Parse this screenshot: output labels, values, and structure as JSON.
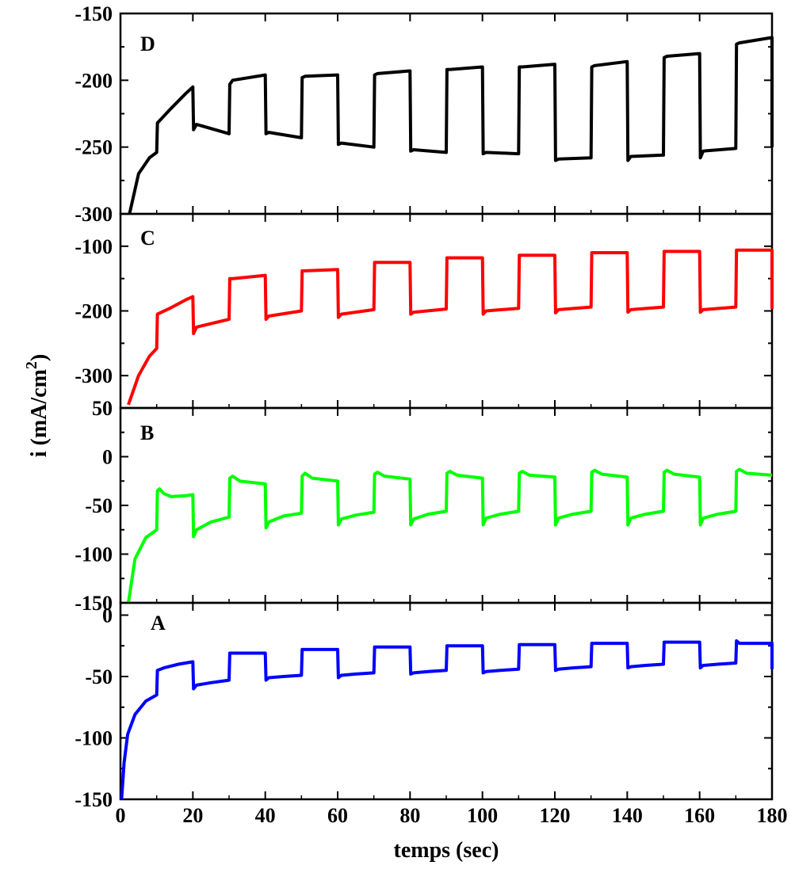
{
  "chart_data": {
    "type": "line",
    "xlabel": "temps (sec)",
    "ylabel": "i (mA/cm",
    "ylabel_sup": "2",
    "ylabel_close": ")",
    "xlim": [
      0,
      180
    ],
    "xticks": [
      0,
      20,
      40,
      60,
      80,
      100,
      120,
      140,
      160,
      180
    ],
    "xtick_labels": [
      "0",
      "20",
      "40",
      "60",
      "80",
      "100",
      "120",
      "140",
      "160",
      "180"
    ],
    "grid": false,
    "panels": [
      {
        "label": "D",
        "color": "#000000",
        "ylim": [
          -300,
          -150
        ],
        "yticks": [
          -150,
          -200,
          -250,
          -300
        ],
        "ytick_labels": [
          "-150",
          "-200",
          "-250",
          "-300"
        ],
        "y_inverted": true,
        "start": -305,
        "series": [
          {
            "x": [
              2.5,
              5,
              8,
              10
            ],
            "y": [
              -300,
              -270,
              -258,
              -254
            ]
          },
          {
            "x": [
              10.2,
              14,
              18,
              20
            ],
            "y": [
              -232,
              -221,
              -210,
              -205
            ]
          },
          {
            "x": [
              20.2,
              21,
              30
            ],
            "y": [
              -237,
              -233,
              -240
            ]
          },
          {
            "x": [
              30.2,
              31,
              40
            ],
            "y": [
              -203,
              -200,
              -196
            ]
          },
          {
            "x": [
              40.2,
              41,
              50
            ],
            "y": [
              -240,
              -239,
              -243
            ]
          },
          {
            "x": [
              50.2,
              51,
              60
            ],
            "y": [
              -198,
              -197,
              -196
            ]
          },
          {
            "x": [
              60.2,
              61,
              70
            ],
            "y": [
              -248,
              -247,
              -250
            ]
          },
          {
            "x": [
              70.2,
              71,
              80
            ],
            "y": [
              -196,
              -195,
              -193
            ]
          },
          {
            "x": [
              80.2,
              81,
              90
            ],
            "y": [
              -253,
              -252,
              -254
            ]
          },
          {
            "x": [
              90.2,
              91,
              100
            ],
            "y": [
              -192,
              -192,
              -190
            ]
          },
          {
            "x": [
              100.2,
              101,
              110
            ],
            "y": [
              -255,
              -254,
              -255
            ]
          },
          {
            "x": [
              110.2,
              111,
              120
            ],
            "y": [
              -190,
              -190,
              -188
            ]
          },
          {
            "x": [
              120.2,
              121,
              130
            ],
            "y": [
              -260,
              -259,
              -258
            ]
          },
          {
            "x": [
              130.2,
              131,
              140
            ],
            "y": [
              -190,
              -189,
              -186
            ]
          },
          {
            "x": [
              140.2,
              141,
              150
            ],
            "y": [
              -260,
              -257,
              -256
            ]
          },
          {
            "x": [
              150.2,
              151,
              160
            ],
            "y": [
              -183,
              -182,
              -180
            ]
          },
          {
            "x": [
              160.2,
              161,
              170
            ],
            "y": [
              -258,
              -253,
              -251
            ]
          },
          {
            "x": [
              170.2,
              171,
              180
            ],
            "y": [
              -173,
              -172,
              -168
            ]
          }
        ],
        "end": -250
      },
      {
        "label": "C",
        "color": "#ff0000",
        "ylim": [
          -350,
          -50
        ],
        "yticks": [
          -100,
          -200,
          -300
        ],
        "ytick_labels": [
          "-100",
          "-200",
          "-300"
        ],
        "y_inverted": true,
        "start": -360,
        "series": [
          {
            "x": [
              2.2,
              5,
              8,
              10
            ],
            "y": [
              -345,
              -300,
              -270,
              -258
            ]
          },
          {
            "x": [
              10.2,
              14,
              18,
              20
            ],
            "y": [
              -205,
              -195,
              -183,
              -178
            ]
          },
          {
            "x": [
              20.2,
              21,
              30
            ],
            "y": [
              -235,
              -225,
              -213
            ]
          },
          {
            "x": [
              30.2,
              31,
              40
            ],
            "y": [
              -150,
              -150,
              -145
            ]
          },
          {
            "x": [
              40.2,
              41,
              50
            ],
            "y": [
              -213,
              -208,
              -200
            ]
          },
          {
            "x": [
              50.2,
              51,
              60
            ],
            "y": [
              -138,
              -138,
              -136
            ]
          },
          {
            "x": [
              60.2,
              61,
              70
            ],
            "y": [
              -210,
              -205,
              -198
            ]
          },
          {
            "x": [
              70.2,
              71,
              80
            ],
            "y": [
              -125,
              -125,
              -125
            ]
          },
          {
            "x": [
              80.2,
              81,
              90
            ],
            "y": [
              -205,
              -202,
              -197
            ]
          },
          {
            "x": [
              90.2,
              91,
              100
            ],
            "y": [
              -118,
              -118,
              -118
            ]
          },
          {
            "x": [
              100.2,
              101,
              110
            ],
            "y": [
              -205,
              -200,
              -196
            ]
          },
          {
            "x": [
              110.2,
              111,
              120
            ],
            "y": [
              -114,
              -114,
              -114
            ]
          },
          {
            "x": [
              120.2,
              121,
              130
            ],
            "y": [
              -203,
              -198,
              -194
            ]
          },
          {
            "x": [
              130.2,
              131,
              140
            ],
            "y": [
              -110,
              -110,
              -110
            ]
          },
          {
            "x": [
              140.2,
              141,
              150
            ],
            "y": [
              -202,
              -198,
              -194
            ]
          },
          {
            "x": [
              150.2,
              151,
              160
            ],
            "y": [
              -108,
              -108,
              -108
            ]
          },
          {
            "x": [
              160.2,
              161,
              170
            ],
            "y": [
              -202,
              -198,
              -194
            ]
          },
          {
            "x": [
              170.2,
              171,
              180
            ],
            "y": [
              -106,
              -106,
              -106
            ]
          }
        ],
        "end": -197
      },
      {
        "label": "B",
        "color": "#00ff00",
        "ylim": [
          -150,
          50
        ],
        "yticks": [
          50,
          0,
          -50,
          -100,
          -150
        ],
        "ytick_labels": [
          "50",
          "0",
          "-50",
          "-100",
          "-150"
        ],
        "y_inverted": false,
        "start": -155,
        "series": [
          {
            "x": [
              2.2,
              4,
              7,
              10
            ],
            "y": [
              -150,
              -105,
              -83,
              -75
            ]
          },
          {
            "x": [
              10.2,
              10.8,
              12,
              14,
              18,
              20
            ],
            "y": [
              -35,
              -33,
              -38,
              -41,
              -40,
              -39
            ]
          },
          {
            "x": [
              20.2,
              21,
              25,
              30
            ],
            "y": [
              -82,
              -75,
              -67,
              -62
            ]
          },
          {
            "x": [
              30.2,
              31,
              33,
              40
            ],
            "y": [
              -22,
              -20,
              -25,
              -28
            ]
          },
          {
            "x": [
              40.2,
              41,
              45,
              50
            ],
            "y": [
              -73,
              -67,
              -61,
              -58
            ]
          },
          {
            "x": [
              50.2,
              51,
              53,
              60
            ],
            "y": [
              -20,
              -17,
              -22,
              -25
            ]
          },
          {
            "x": [
              60.2,
              61,
              65,
              70
            ],
            "y": [
              -70,
              -64,
              -60,
              -57
            ]
          },
          {
            "x": [
              70.2,
              71,
              73,
              80
            ],
            "y": [
              -18,
              -16,
              -20,
              -23
            ]
          },
          {
            "x": [
              80.2,
              81,
              85,
              90
            ],
            "y": [
              -70,
              -64,
              -59,
              -56
            ]
          },
          {
            "x": [
              90.2,
              91,
              93,
              100
            ],
            "y": [
              -17,
              -15,
              -19,
              -22
            ]
          },
          {
            "x": [
              100.2,
              101,
              105,
              110
            ],
            "y": [
              -70,
              -63,
              -59,
              -56
            ]
          },
          {
            "x": [
              110.2,
              111,
              113,
              120
            ],
            "y": [
              -17,
              -15,
              -19,
              -21
            ]
          },
          {
            "x": [
              120.2,
              121,
              125,
              130
            ],
            "y": [
              -70,
              -63,
              -59,
              -56
            ]
          },
          {
            "x": [
              130.2,
              131,
              133,
              140
            ],
            "y": [
              -16,
              -14,
              -18,
              -21
            ]
          },
          {
            "x": [
              140.2,
              141,
              145,
              150
            ],
            "y": [
              -70,
              -63,
              -59,
              -56
            ]
          },
          {
            "x": [
              150.2,
              151,
              153,
              160
            ],
            "y": [
              -16,
              -14,
              -18,
              -21
            ]
          },
          {
            "x": [
              160.2,
              161,
              165,
              170
            ],
            "y": [
              -70,
              -63,
              -59,
              -56
            ]
          },
          {
            "x": [
              170.2,
              171,
              173,
              180
            ],
            "y": [
              -15,
              -13,
              -17,
              -19
            ]
          }
        ],
        "end": null
      },
      {
        "label": "A",
        "color": "#0000ff",
        "ylim": [
          -150,
          10
        ],
        "yticks": [
          0,
          -50,
          -100,
          -150
        ],
        "ytick_labels": [
          "0",
          "-50",
          "-100",
          "-150"
        ],
        "y_inverted": false,
        "start": -155,
        "series": [
          {
            "x": [
              0.3,
              1,
              2,
              4,
              7,
              10
            ],
            "y": [
              -150,
              -120,
              -97,
              -81,
              -70,
              -65
            ]
          },
          {
            "x": [
              10.2,
              12,
              16,
              20
            ],
            "y": [
              -45,
              -43,
              -40,
              -38
            ]
          },
          {
            "x": [
              20.2,
              21,
              25,
              30
            ],
            "y": [
              -60,
              -57,
              -55,
              -53
            ]
          },
          {
            "x": [
              30.2,
              31,
              40
            ],
            "y": [
              -31,
              -31,
              -31
            ]
          },
          {
            "x": [
              40.2,
              41,
              45,
              50
            ],
            "y": [
              -53,
              -51,
              -50,
              -49
            ]
          },
          {
            "x": [
              50.2,
              51,
              60
            ],
            "y": [
              -28,
              -28,
              -28
            ]
          },
          {
            "x": [
              60.2,
              61,
              65,
              70
            ],
            "y": [
              -51,
              -49,
              -48,
              -47
            ]
          },
          {
            "x": [
              70.2,
              71,
              80
            ],
            "y": [
              -26,
              -26,
              -26
            ]
          },
          {
            "x": [
              80.2,
              81,
              85,
              90
            ],
            "y": [
              -48,
              -47,
              -46,
              -45
            ]
          },
          {
            "x": [
              90.2,
              91,
              100
            ],
            "y": [
              -25,
              -25,
              -25
            ]
          },
          {
            "x": [
              100.2,
              101,
              105,
              110
            ],
            "y": [
              -47,
              -46,
              -45,
              -44
            ]
          },
          {
            "x": [
              110.2,
              111,
              120
            ],
            "y": [
              -24,
              -24,
              -24
            ]
          },
          {
            "x": [
              120.2,
              121,
              125,
              130
            ],
            "y": [
              -45,
              -44,
              -43,
              -42
            ]
          },
          {
            "x": [
              130.2,
              131,
              140
            ],
            "y": [
              -23,
              -23,
              -23
            ]
          },
          {
            "x": [
              140.2,
              141,
              145,
              150
            ],
            "y": [
              -43,
              -42,
              -41,
              -40
            ]
          },
          {
            "x": [
              150.2,
              151,
              160
            ],
            "y": [
              -22,
              -22,
              -22
            ]
          },
          {
            "x": [
              160.2,
              161,
              165,
              170
            ],
            "y": [
              -43,
              -41,
              -40,
              -39
            ]
          },
          {
            "x": [
              170.2,
              171,
              180
            ],
            "y": [
              -21,
              -23,
              -23
            ]
          }
        ],
        "end": -44
      }
    ]
  }
}
